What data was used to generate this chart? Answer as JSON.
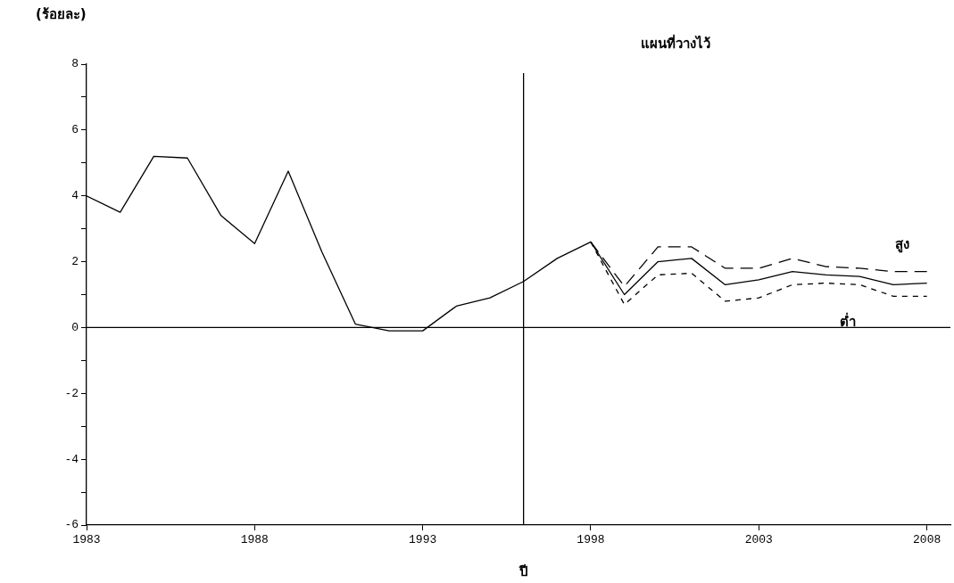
{
  "chart_data": {
    "type": "line",
    "ylabel": "(ร้อยละ)",
    "xlabel": "ปี",
    "xlim": [
      1983,
      2008.7
    ],
    "xticks": [
      1983,
      1988,
      1993,
      1998,
      2003,
      2008
    ],
    "ylim": [
      -6,
      8
    ],
    "yticks": [
      -6,
      {
        "value": -5,
        "label": null
      },
      -4,
      {
        "value": -3,
        "label": null
      },
      -2,
      {
        "value": -1,
        "label": null
      },
      0,
      {
        "value": 1,
        "label": null
      },
      2,
      {
        "value": 3,
        "label": null
      },
      4,
      {
        "value": 5,
        "label": null
      },
      6,
      {
        "value": 7,
        "label": null
      },
      8
    ],
    "grid": false,
    "legend": false,
    "marker": "none",
    "annotations": [
      "แผนที่วางไว้"
    ],
    "ref_lines": [
      {
        "axis": "x",
        "value": 1996,
        "label": null,
        "color": "#000000"
      },
      {
        "axis": "y",
        "value": 0,
        "label": null,
        "color": "#000000"
      }
    ],
    "series": [
      {
        "color": "#000000",
        "line_style": "solid",
        "x": [
          1983,
          1984,
          1985,
          1986,
          1987,
          1988,
          1989,
          1990,
          1991,
          1992,
          1993,
          1994,
          1995,
          1996,
          1997,
          1998,
          1999,
          2000,
          2001,
          2002,
          2003,
          2004,
          2005,
          2006,
          2007,
          2008
        ],
        "values": [
          4.0,
          3.5,
          5.2,
          5.15,
          3.4,
          2.55,
          4.75,
          2.3,
          0.1,
          -0.1,
          -0.1,
          0.65,
          0.9,
          1.4,
          2.1,
          2.6,
          1.0,
          2.0,
          2.1,
          1.3,
          1.45,
          1.7,
          1.6,
          1.55,
          1.3,
          1.35
        ]
      },
      {
        "name": "สูง",
        "color": "#000000",
        "line_style": "dashed",
        "x": [
          1998,
          1999,
          2000,
          2001,
          2002,
          2003,
          2004,
          2005,
          2006,
          2007,
          2008
        ],
        "values": [
          2.6,
          1.25,
          2.45,
          2.45,
          1.8,
          1.8,
          2.1,
          1.85,
          1.8,
          1.7,
          1.7
        ]
      },
      {
        "name": "ต่ำ",
        "color": "#000000",
        "line_style": "dotted",
        "x": [
          1998,
          1999,
          2000,
          2001,
          2002,
          2003,
          2004,
          2005,
          2006,
          2007,
          2008
        ],
        "values": [
          2.6,
          0.7,
          1.6,
          1.65,
          0.8,
          0.9,
          1.3,
          1.35,
          1.3,
          0.95,
          0.95
        ]
      }
    ]
  }
}
